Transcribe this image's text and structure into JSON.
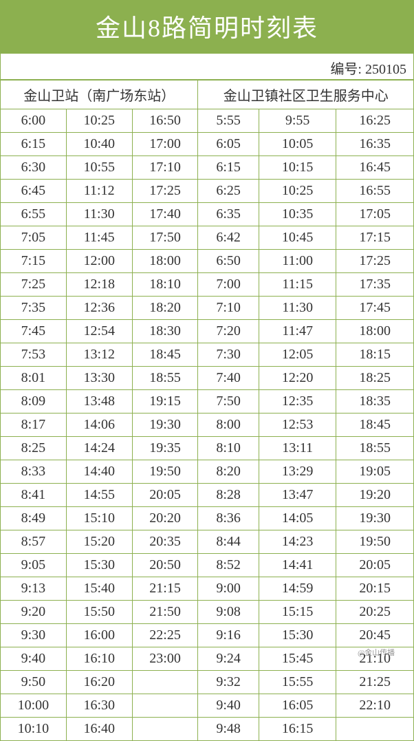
{
  "title": "金山8路简明时刻表",
  "code_label": "编号: ",
  "code_value": "250105",
  "left_header": "金山卫站（南广场东站）",
  "right_header": "金山卫镇社区卫生服务中心",
  "watermark": "@金山传播",
  "colors": {
    "header_bg": "#8cb04f",
    "header_text": "#ffffff",
    "border": "#8cb04f",
    "text": "#333333",
    "bg": "#ffffff"
  },
  "left_times": {
    "c1": [
      "6:00",
      "6:15",
      "6:30",
      "6:45",
      "6:55",
      "7:05",
      "7:15",
      "7:25",
      "7:35",
      "7:45",
      "7:53",
      "8:01",
      "8:09",
      "8:17",
      "8:25",
      "8:33",
      "8:41",
      "8:49",
      "8:57",
      "9:05",
      "9:13",
      "9:20",
      "9:30",
      "9:40",
      "9:50",
      "10:00",
      "10:10"
    ],
    "c2": [
      "10:25",
      "10:40",
      "10:55",
      "11:12",
      "11:30",
      "11:45",
      "12:00",
      "12:18",
      "12:36",
      "12:54",
      "13:12",
      "13:30",
      "13:48",
      "14:06",
      "14:24",
      "14:40",
      "14:55",
      "15:10",
      "15:20",
      "15:30",
      "15:40",
      "15:50",
      "16:00",
      "16:10",
      "16:20",
      "16:30",
      "16:40"
    ],
    "c3": [
      "16:50",
      "17:00",
      "17:10",
      "17:25",
      "17:40",
      "17:50",
      "18:00",
      "18:10",
      "18:20",
      "18:30",
      "18:45",
      "18:55",
      "19:15",
      "19:30",
      "19:35",
      "19:50",
      "20:05",
      "20:20",
      "20:35",
      "20:50",
      "21:15",
      "21:50",
      "22:25",
      "23:00",
      "",
      "",
      ""
    ]
  },
  "right_times": {
    "c1": [
      "5:55",
      "6:05",
      "6:15",
      "6:25",
      "6:35",
      "6:42",
      "6:50",
      "7:00",
      "7:10",
      "7:20",
      "7:30",
      "7:40",
      "7:50",
      "8:00",
      "8:10",
      "8:20",
      "8:28",
      "8:36",
      "8:44",
      "8:52",
      "9:00",
      "9:08",
      "9:16",
      "9:24",
      "9:32",
      "9:40",
      "9:48"
    ],
    "c2": [
      "9:55",
      "10:05",
      "10:15",
      "10:25",
      "10:35",
      "10:45",
      "11:00",
      "11:15",
      "11:30",
      "11:47",
      "12:05",
      "12:20",
      "12:35",
      "12:53",
      "13:11",
      "13:29",
      "13:47",
      "14:05",
      "14:23",
      "14:41",
      "14:59",
      "15:15",
      "15:30",
      "15:45",
      "15:55",
      "16:05",
      "16:15"
    ],
    "c3": [
      "16:25",
      "16:35",
      "16:45",
      "16:55",
      "17:05",
      "17:15",
      "17:25",
      "17:35",
      "17:45",
      "18:00",
      "18:15",
      "18:25",
      "18:35",
      "18:45",
      "18:55",
      "19:05",
      "19:20",
      "19:30",
      "19:50",
      "20:05",
      "20:15",
      "20:25",
      "20:45",
      "21:10",
      "21:25",
      "22:10",
      ""
    ]
  },
  "row_count": 27
}
